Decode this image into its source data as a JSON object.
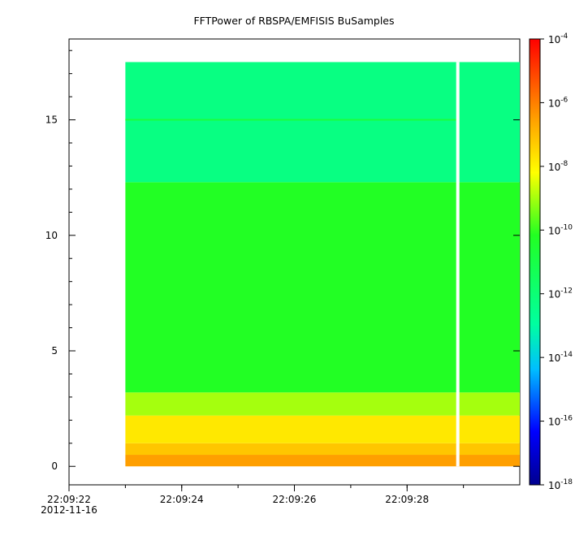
{
  "chart_data": {
    "type": "heatmap",
    "title": "FFTPower of RBSPA/EMFISIS  BuSamples",
    "xlabel": "",
    "ylabel": "",
    "x_axis": {
      "type": "time",
      "start": "22:09:22",
      "end": "22:09:30",
      "ticks": [
        {
          "value": "22:09:22",
          "label": "22:09:22",
          "sublabel": "2012-11-16"
        },
        {
          "value": "22:09:24",
          "label": "22:09:24"
        },
        {
          "value": "22:09:26",
          "label": "22:09:26"
        },
        {
          "value": "22:09:28",
          "label": "22:09:28"
        }
      ]
    },
    "y_axis": {
      "ylim": [
        -0.8,
        18.5
      ],
      "ticks": [
        0,
        5,
        10,
        15
      ]
    },
    "colorbar": {
      "scale": "log",
      "range": [
        1e-18,
        0.0001
      ],
      "tick_bases": [
        "10",
        "10",
        "10",
        "10",
        "10",
        "10",
        "10",
        "10"
      ],
      "tick_exponents": [
        "-18",
        "-16",
        "-14",
        "-12",
        "-10",
        "-8",
        "-6",
        "-4"
      ]
    },
    "data_extent": {
      "x_start": "22:09:23",
      "x_end": "22:09:30",
      "y_min": 0,
      "y_max": 17.5,
      "gap_at": "22:09:28.9"
    },
    "bands": [
      {
        "y_from": 0.0,
        "y_to": 0.5,
        "log_power": -6.5
      },
      {
        "y_from": 0.5,
        "y_to": 1.0,
        "log_power": -7.2
      },
      {
        "y_from": 1.0,
        "y_to": 2.2,
        "log_power": -7.8
      },
      {
        "y_from": 2.2,
        "y_to": 3.2,
        "log_power": -9.0
      },
      {
        "y_from": 3.2,
        "y_to": 12.3,
        "log_power": -10.2
      },
      {
        "y_from": 12.3,
        "y_to": 17.5,
        "log_power": -12.3
      }
    ],
    "spectral_lines": [
      {
        "y": 15.0,
        "log_power": -10.8,
        "x_end": "22:09:28.9"
      }
    ],
    "grid": false,
    "legend": "colorbar-right"
  }
}
